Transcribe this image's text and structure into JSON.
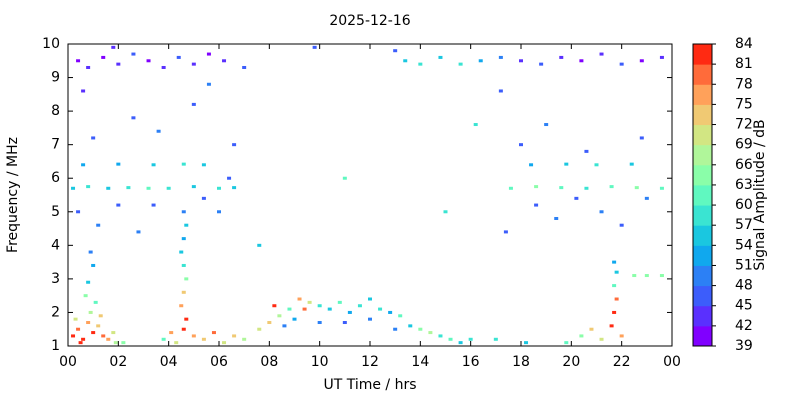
{
  "chart_data": {
    "type": "heatmap",
    "title": "2025-12-16",
    "xlabel": "UT Time / hrs",
    "ylabel": "Frequency / MHz",
    "colorbar_label": "Signal Amplitude / dB",
    "xlim": [
      0,
      24
    ],
    "ylim": [
      1,
      10
    ],
    "clim": [
      39,
      84
    ],
    "xticks": [
      {
        "value": 0,
        "label": "00"
      },
      {
        "value": 2,
        "label": "02"
      },
      {
        "value": 4,
        "label": "04"
      },
      {
        "value": 6,
        "label": "06"
      },
      {
        "value": 8,
        "label": "08"
      },
      10,
      12,
      14,
      16,
      18,
      20,
      22,
      {
        "value": 24,
        "label": "00"
      }
    ],
    "yticks": [
      1,
      2,
      3,
      4,
      5,
      6,
      7,
      8,
      9,
      10
    ],
    "cticks": [
      39,
      42,
      45,
      48,
      51,
      54,
      57,
      60,
      63,
      66,
      69,
      72,
      75,
      78,
      81,
      84
    ],
    "colormap": [
      "#8000ff",
      "#5a30fe",
      "#3c5dfb",
      "#2c80f5",
      "#10a8ee",
      "#1ac7e0",
      "#3ae4d2",
      "#60f8c0",
      "#8afea9",
      "#b0f69a",
      "#d2e683",
      "#f0c973",
      "#ffa15a",
      "#ff6b3a",
      "#ff2a12"
    ],
    "points": [
      {
        "x": 0.2,
        "y": 1.3,
        "value": 81
      },
      {
        "x": 0.4,
        "y": 1.5,
        "value": 78
      },
      {
        "x": 0.6,
        "y": 1.2,
        "value": 84
      },
      {
        "x": 0.8,
        "y": 1.7,
        "value": 75
      },
      {
        "x": 1.0,
        "y": 1.4,
        "value": 81
      },
      {
        "x": 1.2,
        "y": 1.6,
        "value": 72
      },
      {
        "x": 1.4,
        "y": 1.3,
        "value": 78
      },
      {
        "x": 0.3,
        "y": 1.8,
        "value": 69
      },
      {
        "x": 0.9,
        "y": 2.0,
        "value": 66
      },
      {
        "x": 1.1,
        "y": 2.3,
        "value": 60
      },
      {
        "x": 0.8,
        "y": 2.9,
        "value": 54
      },
      {
        "x": 1.0,
        "y": 3.4,
        "value": 51
      },
      {
        "x": 0.9,
        "y": 3.8,
        "value": 48
      },
      {
        "x": 1.6,
        "y": 1.2,
        "value": 75
      },
      {
        "x": 1.8,
        "y": 1.4,
        "value": 69
      },
      {
        "x": 2.2,
        "y": 1.1,
        "value": 63
      },
      {
        "x": 0.5,
        "y": 1.1,
        "value": 84
      },
      {
        "x": 1.3,
        "y": 1.9,
        "value": 72
      },
      {
        "x": 0.7,
        "y": 2.5,
        "value": 63
      },
      {
        "x": 1.9,
        "y": 1.1,
        "value": 66
      },
      {
        "x": 4.6,
        "y": 1.5,
        "value": 84
      },
      {
        "x": 4.7,
        "y": 1.8,
        "value": 81
      },
      {
        "x": 4.5,
        "y": 2.2,
        "value": 75
      },
      {
        "x": 4.6,
        "y": 2.6,
        "value": 72
      },
      {
        "x": 4.7,
        "y": 3.0,
        "value": 63
      },
      {
        "x": 4.6,
        "y": 3.4,
        "value": 57
      },
      {
        "x": 4.5,
        "y": 3.8,
        "value": 54
      },
      {
        "x": 4.6,
        "y": 4.2,
        "value": 51
      },
      {
        "x": 4.7,
        "y": 4.6,
        "value": 54
      },
      {
        "x": 4.6,
        "y": 5.0,
        "value": 48
      },
      {
        "x": 4.1,
        "y": 1.4,
        "value": 75
      },
      {
        "x": 4.3,
        "y": 1.1,
        "value": 69
      },
      {
        "x": 5.0,
        "y": 1.3,
        "value": 75
      },
      {
        "x": 5.4,
        "y": 1.2,
        "value": 72
      },
      {
        "x": 5.8,
        "y": 1.4,
        "value": 78
      },
      {
        "x": 6.2,
        "y": 1.1,
        "value": 69
      },
      {
        "x": 6.6,
        "y": 1.3,
        "value": 72
      },
      {
        "x": 7.0,
        "y": 1.2,
        "value": 66
      },
      {
        "x": 3.8,
        "y": 1.2,
        "value": 60
      },
      {
        "x": 7.6,
        "y": 1.5,
        "value": 69
      },
      {
        "x": 8.0,
        "y": 1.7,
        "value": 72
      },
      {
        "x": 8.4,
        "y": 1.9,
        "value": 66
      },
      {
        "x": 8.8,
        "y": 2.1,
        "value": 60
      },
      {
        "x": 9.2,
        "y": 2.4,
        "value": 75
      },
      {
        "x": 9.0,
        "y": 1.8,
        "value": 51
      },
      {
        "x": 9.6,
        "y": 2.3,
        "value": 69
      },
      {
        "x": 10.0,
        "y": 2.2,
        "value": 57
      },
      {
        "x": 10.4,
        "y": 2.1,
        "value": 54
      },
      {
        "x": 10.0,
        "y": 1.7,
        "value": 48
      },
      {
        "x": 10.8,
        "y": 2.3,
        "value": 60
      },
      {
        "x": 11.2,
        "y": 2.0,
        "value": 51
      },
      {
        "x": 11.6,
        "y": 2.2,
        "value": 57
      },
      {
        "x": 12.0,
        "y": 2.4,
        "value": 54
      },
      {
        "x": 12.0,
        "y": 1.8,
        "value": 48
      },
      {
        "x": 12.4,
        "y": 2.1,
        "value": 57
      },
      {
        "x": 12.8,
        "y": 2.0,
        "value": 51
      },
      {
        "x": 13.2,
        "y": 1.9,
        "value": 60
      },
      {
        "x": 13.6,
        "y": 1.6,
        "value": 54
      },
      {
        "x": 14.0,
        "y": 1.5,
        "value": 63
      },
      {
        "x": 14.4,
        "y": 1.4,
        "value": 66
      },
      {
        "x": 14.8,
        "y": 1.3,
        "value": 57
      },
      {
        "x": 15.2,
        "y": 1.2,
        "value": 60
      },
      {
        "x": 15.6,
        "y": 1.1,
        "value": 54
      },
      {
        "x": 16.0,
        "y": 1.2,
        "value": 57
      },
      {
        "x": 8.6,
        "y": 1.6,
        "value": 48
      },
      {
        "x": 11.0,
        "y": 1.7,
        "value": 45
      },
      {
        "x": 13.0,
        "y": 1.5,
        "value": 48
      },
      {
        "x": 9.4,
        "y": 2.1,
        "value": 78
      },
      {
        "x": 8.2,
        "y": 2.2,
        "value": 81
      },
      {
        "x": 19.8,
        "y": 1.1,
        "value": 60
      },
      {
        "x": 20.4,
        "y": 1.3,
        "value": 63
      },
      {
        "x": 20.8,
        "y": 1.5,
        "value": 72
      },
      {
        "x": 21.2,
        "y": 1.2,
        "value": 69
      },
      {
        "x": 21.6,
        "y": 1.6,
        "value": 81
      },
      {
        "x": 21.7,
        "y": 2.0,
        "value": 84
      },
      {
        "x": 21.8,
        "y": 2.4,
        "value": 78
      },
      {
        "x": 21.7,
        "y": 2.8,
        "value": 60
      },
      {
        "x": 21.8,
        "y": 3.2,
        "value": 54
      },
      {
        "x": 21.7,
        "y": 3.5,
        "value": 51
      },
      {
        "x": 22.0,
        "y": 1.3,
        "value": 75
      },
      {
        "x": 22.5,
        "y": 3.1,
        "value": 63
      },
      {
        "x": 23.0,
        "y": 3.1,
        "value": 63
      },
      {
        "x": 23.6,
        "y": 3.1,
        "value": 63
      },
      {
        "x": 18.2,
        "y": 1.1,
        "value": 54
      },
      {
        "x": 17.0,
        "y": 1.2,
        "value": 57
      },
      {
        "x": 0.2,
        "y": 5.7,
        "value": 54
      },
      {
        "x": 0.8,
        "y": 5.75,
        "value": 57
      },
      {
        "x": 1.6,
        "y": 5.7,
        "value": 54
      },
      {
        "x": 2.4,
        "y": 5.72,
        "value": 57
      },
      {
        "x": 3.2,
        "y": 5.7,
        "value": 60
      },
      {
        "x": 4.0,
        "y": 5.7,
        "value": 57
      },
      {
        "x": 5.0,
        "y": 5.75,
        "value": 54
      },
      {
        "x": 6.0,
        "y": 5.7,
        "value": 57
      },
      {
        "x": 6.6,
        "y": 5.72,
        "value": 54
      },
      {
        "x": 17.6,
        "y": 5.7,
        "value": 60
      },
      {
        "x": 18.6,
        "y": 5.75,
        "value": 63
      },
      {
        "x": 19.6,
        "y": 5.72,
        "value": 60
      },
      {
        "x": 20.6,
        "y": 5.7,
        "value": 57
      },
      {
        "x": 21.6,
        "y": 5.75,
        "value": 60
      },
      {
        "x": 22.6,
        "y": 5.72,
        "value": 63
      },
      {
        "x": 23.6,
        "y": 5.7,
        "value": 60
      },
      {
        "x": 0.6,
        "y": 6.4,
        "value": 51
      },
      {
        "x": 2.0,
        "y": 6.42,
        "value": 51
      },
      {
        "x": 3.4,
        "y": 6.4,
        "value": 54
      },
      {
        "x": 4.6,
        "y": 6.42,
        "value": 57
      },
      {
        "x": 5.4,
        "y": 6.4,
        "value": 54
      },
      {
        "x": 18.4,
        "y": 6.4,
        "value": 51
      },
      {
        "x": 19.8,
        "y": 6.42,
        "value": 54
      },
      {
        "x": 21.0,
        "y": 6.4,
        "value": 57
      },
      {
        "x": 22.4,
        "y": 6.42,
        "value": 54
      },
      {
        "x": 0.4,
        "y": 5.0,
        "value": 45
      },
      {
        "x": 1.2,
        "y": 4.6,
        "value": 48
      },
      {
        "x": 2.0,
        "y": 5.2,
        "value": 45
      },
      {
        "x": 2.8,
        "y": 4.4,
        "value": 48
      },
      {
        "x": 3.4,
        "y": 5.2,
        "value": 45
      },
      {
        "x": 5.4,
        "y": 5.4,
        "value": 45
      },
      {
        "x": 6.0,
        "y": 5.0,
        "value": 48
      },
      {
        "x": 6.4,
        "y": 6.0,
        "value": 45
      },
      {
        "x": 1.0,
        "y": 7.2,
        "value": 45
      },
      {
        "x": 2.6,
        "y": 7.8,
        "value": 45
      },
      {
        "x": 3.6,
        "y": 7.4,
        "value": 48
      },
      {
        "x": 5.0,
        "y": 8.2,
        "value": 45
      },
      {
        "x": 6.6,
        "y": 7.0,
        "value": 45
      },
      {
        "x": 0.6,
        "y": 8.6,
        "value": 42
      },
      {
        "x": 18.6,
        "y": 5.2,
        "value": 45
      },
      {
        "x": 19.4,
        "y": 4.8,
        "value": 48
      },
      {
        "x": 20.2,
        "y": 5.4,
        "value": 45
      },
      {
        "x": 21.2,
        "y": 5.0,
        "value": 48
      },
      {
        "x": 22.0,
        "y": 4.6,
        "value": 45
      },
      {
        "x": 23.0,
        "y": 5.4,
        "value": 48
      },
      {
        "x": 17.4,
        "y": 4.4,
        "value": 45
      },
      {
        "x": 18.0,
        "y": 7.0,
        "value": 45
      },
      {
        "x": 19.0,
        "y": 7.6,
        "value": 48
      },
      {
        "x": 20.6,
        "y": 6.8,
        "value": 45
      },
      {
        "x": 22.8,
        "y": 7.2,
        "value": 45
      },
      {
        "x": 16.2,
        "y": 7.6,
        "value": 57
      },
      {
        "x": 17.2,
        "y": 8.6,
        "value": 45
      },
      {
        "x": 15.0,
        "y": 5.0,
        "value": 57
      },
      {
        "x": 11.0,
        "y": 6.0,
        "value": 60
      },
      {
        "x": 7.6,
        "y": 4.0,
        "value": 54
      },
      {
        "x": 0.4,
        "y": 9.5,
        "value": 39
      },
      {
        "x": 0.8,
        "y": 9.3,
        "value": 42
      },
      {
        "x": 1.4,
        "y": 9.6,
        "value": 39
      },
      {
        "x": 2.0,
        "y": 9.4,
        "value": 42
      },
      {
        "x": 2.6,
        "y": 9.7,
        "value": 45
      },
      {
        "x": 3.2,
        "y": 9.5,
        "value": 39
      },
      {
        "x": 3.8,
        "y": 9.3,
        "value": 42
      },
      {
        "x": 4.4,
        "y": 9.6,
        "value": 45
      },
      {
        "x": 5.0,
        "y": 9.4,
        "value": 42
      },
      {
        "x": 5.6,
        "y": 9.7,
        "value": 39
      },
      {
        "x": 6.2,
        "y": 9.5,
        "value": 42
      },
      {
        "x": 7.0,
        "y": 9.3,
        "value": 45
      },
      {
        "x": 13.0,
        "y": 9.8,
        "value": 45
      },
      {
        "x": 13.4,
        "y": 9.5,
        "value": 54
      },
      {
        "x": 14.0,
        "y": 9.4,
        "value": 57
      },
      {
        "x": 14.8,
        "y": 9.6,
        "value": 54
      },
      {
        "x": 15.6,
        "y": 9.4,
        "value": 57
      },
      {
        "x": 16.4,
        "y": 9.5,
        "value": 51
      },
      {
        "x": 17.2,
        "y": 9.6,
        "value": 48
      },
      {
        "x": 18.0,
        "y": 9.5,
        "value": 42
      },
      {
        "x": 18.8,
        "y": 9.4,
        "value": 45
      },
      {
        "x": 19.6,
        "y": 9.6,
        "value": 42
      },
      {
        "x": 20.4,
        "y": 9.5,
        "value": 39
      },
      {
        "x": 21.2,
        "y": 9.7,
        "value": 42
      },
      {
        "x": 22.0,
        "y": 9.4,
        "value": 45
      },
      {
        "x": 22.8,
        "y": 9.5,
        "value": 39
      },
      {
        "x": 23.6,
        "y": 9.6,
        "value": 42
      },
      {
        "x": 1.8,
        "y": 9.9,
        "value": 42
      },
      {
        "x": 9.8,
        "y": 9.9,
        "value": 45
      },
      {
        "x": 5.6,
        "y": 8.8,
        "value": 48
      }
    ]
  }
}
